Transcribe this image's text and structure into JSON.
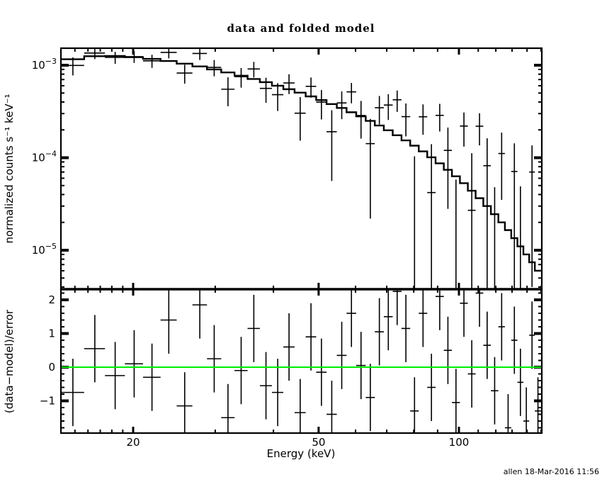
{
  "title": "data and folded model",
  "footer": "allen 18-Mar-2016 11:56",
  "colors": {
    "foreground": "#000000",
    "background": "#ffffff",
    "zero_line": "#00ee00"
  },
  "chart_data": {
    "type": "xspec_data_and_folded_model",
    "title": "data and folded model",
    "x_axis": {
      "label": "Energy (keV)",
      "scale": "log",
      "lim": [
        14.0,
        150.6
      ],
      "major_ticks": [
        {
          "v": 20,
          "label": "20"
        },
        {
          "v": 50,
          "label": "50"
        },
        {
          "v": 100,
          "label": "100"
        }
      ],
      "minor_ticks": [
        15,
        16,
        17,
        18,
        19,
        30,
        40,
        60,
        70,
        80,
        90,
        110,
        120,
        130,
        140,
        150
      ]
    },
    "top_panel": {
      "ylabel": "normalized counts s⁻¹ keV⁻¹",
      "scale": "log",
      "lim": [
        3.8e-06,
        0.00153
      ],
      "major_ticks": [
        {
          "v": 0.001,
          "label_base": "10",
          "label_exp": "−3"
        },
        {
          "v": 0.0001,
          "label_base": "10",
          "label_exp": "−4"
        },
        {
          "v": 1e-05,
          "label_base": "10",
          "label_exp": "−5"
        }
      ]
    },
    "bottom_panel": {
      "ylabel": "(data−model)/error",
      "scale": "linear",
      "lim": [
        -1.96,
        2.32
      ],
      "major_ticks": [
        {
          "v": 2,
          "label": "2"
        },
        {
          "v": 1,
          "label": "1"
        },
        {
          "v": 0,
          "label": "0"
        },
        {
          "v": -1,
          "label": "−1"
        }
      ],
      "minor_step": 0.2,
      "residual_error": 1,
      "zero_line_color": "#00ee00"
    },
    "bins": {
      "edges_kev": [
        14.0,
        15.7,
        17.4,
        19.2,
        21.0,
        22.9,
        24.8,
        26.8,
        28.8,
        30.9,
        33.0,
        35.2,
        37.4,
        39.7,
        42.0,
        44.4,
        46.9,
        49.4,
        52.0,
        54.7,
        57.4,
        60.2,
        63.1,
        66.0,
        69.0,
        72.1,
        75.3,
        78.6,
        82.0,
        85.5,
        89.1,
        92.8,
        96.6,
        100.5,
        104.5,
        108.6,
        112.8,
        117.1,
        121.5,
        125.5,
        129.5,
        133.5,
        137.5,
        141.5,
        145.5,
        150.0
      ],
      "model": [
        0.00116,
        0.00125,
        0.00126,
        0.00122,
        0.00117,
        0.00111,
        0.00104,
        0.00097,
        0.0009,
        0.000835,
        0.00077,
        0.00071,
        0.000655,
        0.0006,
        0.00055,
        0.000505,
        0.00046,
        0.00042,
        0.00038,
        0.000345,
        0.00031,
        0.00028,
        0.00025,
        0.000223,
        0.000198,
        0.000175,
        0.000154,
        0.000135,
        0.000117,
        0.000101,
        8.7e-05,
        7.4e-05,
        6.3e-05,
        5.3e-05,
        4.4e-05,
        3.65e-05,
        3e-05,
        2.45e-05,
        2e-05,
        1.65e-05,
        1.35e-05,
        1.1e-05,
        9e-06,
        7.4e-06,
        6e-06
      ],
      "data": [
        0.000995,
        0.001355,
        0.001215,
        0.001238,
        0.001116,
        0.001376,
        0.000822,
        0.00134,
        0.000948,
        0.00055,
        0.000752,
        0.000911,
        0.000562,
        0.00048,
        0.000643,
        0.000303,
        0.000591,
        0.000399,
        0.000191,
        0.000391,
        0.000515,
        0.000286,
        0.000142,
        0.000347,
        0.000371,
        0.000423,
        0.000278,
        -1.5e-06,
        0.000277,
        4.2e-05,
        0.000287,
        0.00012,
        -3.2e-05,
        0.00022,
        2.7e-05,
        0.000219,
        8.2e-05,
        -3e-05,
        0.000111,
        -0.000117,
        7.1e-05,
        -2.1e-05,
        -0.0001,
        7e-05,
        -7.7e-05
      ],
      "data_err": [
        0.00022,
        0.00019,
        0.00018,
        0.00018,
        0.00018,
        0.00019,
        0.00019,
        0.0002,
        0.00019,
        0.00019,
        0.00018,
        0.000175,
        0.00017,
        0.00016,
        0.000155,
        0.00015,
        0.000145,
        0.00014,
        0.000135,
        0.00013,
        0.000128,
        0.000125,
        0.00012,
        0.000118,
        0.000115,
        0.00011,
        0.000108,
        0.000105,
        0.0001,
        9.8e-05,
        9.5e-05,
        9.2e-05,
        9e-05,
        8.8e-05,
        8.5e-05,
        8.3e-05,
        8e-05,
        7.8e-05,
        7.6e-05,
        7.4e-05,
        7.2e-05,
        7e-05,
        6.8e-05,
        6.6e-05,
        6.4e-05
      ],
      "resid": [
        -0.75,
        0.55,
        -0.25,
        0.1,
        -0.3,
        1.4,
        -1.15,
        1.85,
        0.25,
        -1.5,
        -0.1,
        1.15,
        -0.55,
        -0.75,
        0.6,
        -1.35,
        0.9,
        -0.15,
        -1.4,
        0.35,
        1.6,
        0.05,
        -0.9,
        1.05,
        1.5,
        2.25,
        1.15,
        -1.3,
        1.6,
        -0.6,
        2.1,
        0.5,
        -1.05,
        1.9,
        -0.2,
        2.2,
        0.65,
        -0.7,
        1.2,
        -1.8,
        0.8,
        -0.45,
        -1.6,
        0.95,
        -1.3
      ]
    }
  }
}
